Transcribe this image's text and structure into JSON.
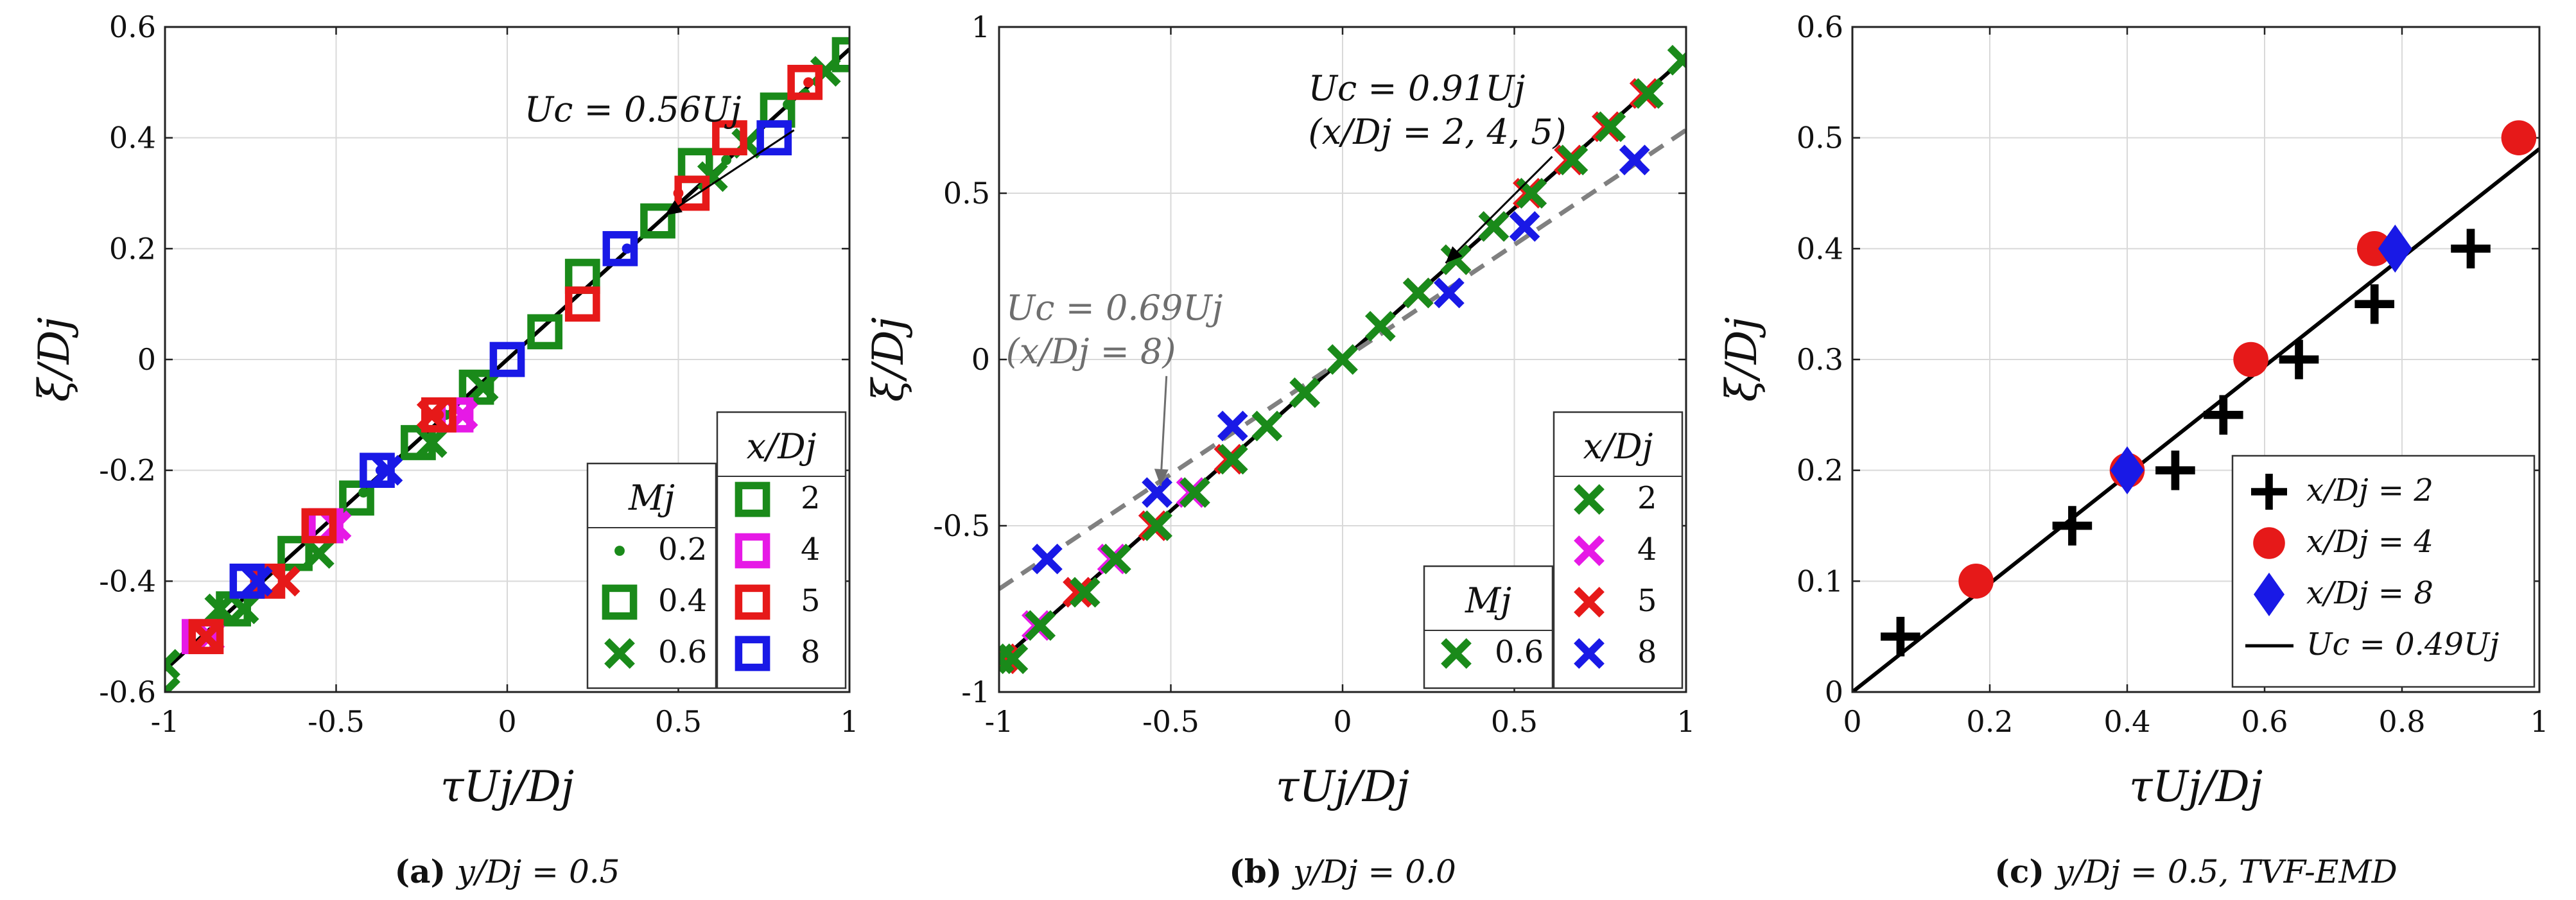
{
  "chart_data": [
    {
      "id": "a",
      "type": "scatter",
      "caption_label": "(a)",
      "caption_text": "y/Dj = 0.5",
      "xlabel": "τUj/Dj",
      "ylabel": "ξ/Dj",
      "xlim": [
        -1,
        1
      ],
      "ylim": [
        -0.6,
        0.6
      ],
      "xticks": [
        -1,
        -0.5,
        0,
        0.5,
        1
      ],
      "xtick_labels": [
        "-1",
        "-0.5",
        "0",
        "0.5",
        "1"
      ],
      "yticks": [
        -0.6,
        -0.4,
        -0.2,
        0,
        0.2,
        0.4,
        0.6
      ],
      "ytick_labels": [
        "-0.6",
        "-0.4",
        "-0.2",
        "0",
        "0.2",
        "0.4",
        "0.6"
      ],
      "grid": true,
      "fit_lines": [
        {
          "name": "Uc = 0.56Uj",
          "slope": 0.56,
          "style": "solid",
          "color": "#000000"
        }
      ],
      "annotations": [
        {
          "text": "Uc = 0.56Uj",
          "x": 0.05,
          "y": 0.43,
          "arrow_to": [
            0.46,
            0.26
          ],
          "color": "#000000"
        }
      ],
      "legend_mach": {
        "title": "Mj",
        "entries": [
          {
            "label": "0.2",
            "marker": "dot"
          },
          {
            "label": "0.4",
            "marker": "square"
          },
          {
            "label": "0.6",
            "marker": "x"
          }
        ]
      },
      "legend_xd": {
        "title": "x/Dj",
        "entries": [
          {
            "label": "2",
            "color": "#1a8a1a",
            "marker": "square"
          },
          {
            "label": "4",
            "color": "#e619e6",
            "marker": "square"
          },
          {
            "label": "5",
            "color": "#e61919",
            "marker": "square"
          },
          {
            "label": "8",
            "color": "#1919e6",
            "marker": "square"
          }
        ]
      },
      "series": [
        {
          "name": "x/Dj=2, Mj=0.2",
          "marker": "dot",
          "color": "#1a8a1a",
          "points": [
            [
              -0.84,
              -0.47
            ],
            [
              -0.42,
              -0.24
            ],
            [
              0.64,
              0.36
            ],
            [
              0.82,
              0.46
            ],
            [
              0.87,
              0.48
            ],
            [
              -0.18,
              -0.1
            ]
          ]
        },
        {
          "name": "x/Dj=2, Mj=0.4",
          "marker": "square",
          "color": "#1a8a1a",
          "points": [
            [
              1.0,
              0.55
            ],
            [
              0.79,
              0.45
            ],
            [
              0.55,
              0.35
            ],
            [
              0.44,
              0.25
            ],
            [
              0.22,
              0.15
            ],
            [
              0.11,
              0.05
            ],
            [
              -0.09,
              -0.05
            ],
            [
              -0.26,
              -0.15
            ],
            [
              -0.44,
              -0.25
            ],
            [
              -0.62,
              -0.35
            ],
            [
              -0.8,
              -0.45
            ]
          ]
        },
        {
          "name": "x/Dj=2, Mj=0.6",
          "marker": "x",
          "color": "#1a8a1a",
          "points": [
            [
              -1.0,
              -0.6
            ],
            [
              -1.0,
              -0.55
            ],
            [
              -0.84,
              -0.45
            ],
            [
              -0.77,
              -0.45
            ],
            [
              -0.55,
              -0.35
            ],
            [
              -0.22,
              -0.15
            ],
            [
              -0.07,
              -0.05
            ],
            [
              0.6,
              0.33
            ],
            [
              0.7,
              0.39
            ],
            [
              0.93,
              0.52
            ]
          ]
        },
        {
          "name": "x/Dj=4, Mj=0.4",
          "marker": "square",
          "color": "#e619e6",
          "points": [
            [
              -0.9,
              -0.5
            ],
            [
              -0.53,
              -0.3
            ],
            [
              -0.15,
              -0.1
            ]
          ]
        },
        {
          "name": "x/Dj=4, Mj=0.6",
          "marker": "x",
          "color": "#e619e6",
          "points": [
            [
              -0.5,
              -0.3
            ],
            [
              -0.13,
              -0.1
            ],
            [
              -0.87,
              -0.5
            ]
          ]
        },
        {
          "name": "x/Dj=5, Mj=0.2",
          "marker": "dot",
          "color": "#e61919",
          "points": [
            [
              0.5,
              0.3
            ],
            [
              0.88,
              0.5
            ],
            [
              -0.2,
              -0.1
            ]
          ]
        },
        {
          "name": "x/Dj=5, Mj=0.4",
          "marker": "square",
          "color": "#e61919",
          "points": [
            [
              0.87,
              0.5
            ],
            [
              0.65,
              0.4
            ],
            [
              0.54,
              0.3
            ],
            [
              0.22,
              0.1
            ],
            [
              -0.2,
              -0.1
            ],
            [
              -0.55,
              -0.3
            ],
            [
              -0.7,
              -0.4
            ],
            [
              -0.88,
              -0.5
            ]
          ]
        },
        {
          "name": "x/Dj=5, Mj=0.6",
          "marker": "x",
          "color": "#e61919",
          "points": [
            [
              -0.65,
              -0.4
            ],
            [
              -0.88,
              -0.5
            ],
            [
              -0.22,
              -0.1
            ]
          ]
        },
        {
          "name": "x/Dj=8, Mj=0.2",
          "marker": "dot",
          "color": "#1919e6",
          "points": [
            [
              0.35,
              0.2
            ],
            [
              -0.37,
              -0.2
            ]
          ]
        },
        {
          "name": "x/Dj=8, Mj=0.4",
          "marker": "square",
          "color": "#1919e6",
          "points": [
            [
              0.78,
              0.4
            ],
            [
              0.33,
              0.2
            ],
            [
              0.0,
              0.0
            ],
            [
              -0.38,
              -0.2
            ],
            [
              -0.76,
              -0.4
            ]
          ]
        },
        {
          "name": "x/Dj=8, Mj=0.6",
          "marker": "x",
          "color": "#1919e6",
          "points": [
            [
              -0.35,
              -0.2
            ],
            [
              -0.73,
              -0.4
            ]
          ]
        }
      ]
    },
    {
      "id": "b",
      "type": "scatter",
      "caption_label": "(b)",
      "caption_text": "y/Dj = 0.0",
      "xlabel": "τUj/Dj",
      "ylabel": "ξ/Dj",
      "xlim": [
        -1,
        1
      ],
      "ylim": [
        -1,
        1
      ],
      "xticks": [
        -1,
        -0.5,
        0,
        0.5,
        1
      ],
      "xtick_labels": [
        "-1",
        "-0.5",
        "0",
        "0.5",
        "1"
      ],
      "yticks": [
        -1,
        -0.5,
        0,
        0.5,
        1
      ],
      "ytick_labels": [
        "-1",
        "-0.5",
        "0",
        "0.5",
        "1"
      ],
      "grid": true,
      "fit_lines": [
        {
          "name": "Uc = 0.91Uj",
          "slope": 0.91,
          "style": "solid",
          "color": "#000000"
        },
        {
          "name": "Uc = 0.69Uj",
          "slope": 0.69,
          "style": "dashed",
          "color": "#808080"
        }
      ],
      "annotations": [
        {
          "text": "Uc = 0.91Uj",
          "text2": "(x/Dj = 2, 4, 5)",
          "x": -0.1,
          "y": 0.78,
          "arrow_to": [
            0.3,
            0.29
          ],
          "color": "#000000"
        },
        {
          "text": "Uc = 0.69Uj",
          "text2": "(x/Dj = 8)",
          "x": -0.98,
          "y": 0.12,
          "arrow_to": [
            -0.53,
            -0.38
          ],
          "color": "#6e6e6e"
        }
      ],
      "legend_mach": {
        "title": "Mj",
        "entries": [
          {
            "label": "0.6",
            "marker": "x"
          }
        ]
      },
      "legend_xd": {
        "title": "x/Dj",
        "entries": [
          {
            "label": "2",
            "color": "#1a8a1a",
            "marker": "x"
          },
          {
            "label": "4",
            "color": "#e619e6",
            "marker": "x"
          },
          {
            "label": "5",
            "color": "#e61919",
            "marker": "x"
          },
          {
            "label": "8",
            "color": "#1919e6",
            "marker": "x"
          }
        ]
      },
      "series": [
        {
          "name": "x/Dj=4",
          "marker": "x",
          "color": "#e619e6",
          "points": [
            [
              -0.89,
              -0.8
            ],
            [
              -0.77,
              -0.7
            ],
            [
              -0.67,
              -0.6
            ],
            [
              -0.55,
              -0.5
            ],
            [
              -0.44,
              -0.4
            ],
            [
              -0.33,
              -0.3
            ],
            [
              0.44,
              0.4
            ],
            [
              0.55,
              0.5
            ],
            [
              0.66,
              0.6
            ],
            [
              0.77,
              0.7
            ],
            [
              0.88,
              0.8
            ]
          ]
        },
        {
          "name": "x/Dj=5",
          "marker": "x",
          "color": "#e61919",
          "points": [
            [
              -0.99,
              -0.9
            ],
            [
              -0.77,
              -0.7
            ],
            [
              -0.55,
              -0.5
            ],
            [
              -0.33,
              -0.3
            ],
            [
              0.22,
              0.2
            ],
            [
              0.33,
              0.3
            ],
            [
              0.54,
              0.5
            ],
            [
              0.66,
              0.6
            ],
            [
              0.77,
              0.7
            ],
            [
              0.88,
              0.8
            ]
          ]
        },
        {
          "name": "x/Dj=2",
          "marker": "x",
          "color": "#1a8a1a",
          "points": [
            [
              -1.0,
              -0.9
            ],
            [
              -0.96,
              -0.9
            ],
            [
              -0.88,
              -0.8
            ],
            [
              -0.75,
              -0.7
            ],
            [
              -0.66,
              -0.6
            ],
            [
              -0.54,
              -0.5
            ],
            [
              -0.43,
              -0.4
            ],
            [
              -0.32,
              -0.3
            ],
            [
              -0.22,
              -0.2
            ],
            [
              -0.11,
              -0.1
            ],
            [
              0.0,
              0.0
            ],
            [
              0.11,
              0.1
            ],
            [
              0.22,
              0.2
            ],
            [
              0.33,
              0.3
            ],
            [
              0.44,
              0.4
            ],
            [
              0.55,
              0.5
            ],
            [
              0.67,
              0.6
            ],
            [
              0.78,
              0.7
            ],
            [
              0.89,
              0.8
            ],
            [
              0.99,
              0.9
            ]
          ]
        },
        {
          "name": "x/Dj=8",
          "marker": "x",
          "color": "#1919e6",
          "points": [
            [
              -0.86,
              -0.6
            ],
            [
              -0.54,
              -0.4
            ],
            [
              -0.32,
              -0.2
            ],
            [
              0.31,
              0.2
            ],
            [
              0.53,
              0.4
            ],
            [
              0.85,
              0.6
            ]
          ]
        }
      ]
    },
    {
      "id": "c",
      "type": "scatter",
      "caption_label": "(c)",
      "caption_text": "y/Dj = 0.5, TVF-EMD",
      "xlabel": "τUj/Dj",
      "ylabel": "ξ/Dj",
      "xlim": [
        0,
        1
      ],
      "ylim": [
        0,
        0.6
      ],
      "xticks": [
        0,
        0.2,
        0.4,
        0.6,
        0.8,
        1
      ],
      "xtick_labels": [
        "0",
        "0.2",
        "0.4",
        "0.6",
        "0.8",
        "1"
      ],
      "yticks": [
        0,
        0.1,
        0.2,
        0.3,
        0.4,
        0.5,
        0.6
      ],
      "ytick_labels": [
        "0",
        "0.1",
        "0.2",
        "0.3",
        "0.4",
        "0.5",
        "0.6"
      ],
      "grid": true,
      "fit_lines": [
        {
          "name": "Uc = 0.49Uj",
          "slope": 0.49,
          "style": "solid",
          "color": "#000000"
        }
      ],
      "annotations": [],
      "legend_entries": [
        {
          "label": "x/Dj = 2",
          "marker": "plus",
          "color": "#000000"
        },
        {
          "label": "x/Dj = 4",
          "marker": "circle",
          "color": "#e61919"
        },
        {
          "label": "x/Dj = 8",
          "marker": "diamond",
          "color": "#1919e6"
        },
        {
          "label": "Uc = 0.49Uj",
          "marker": "line",
          "color": "#000000"
        }
      ],
      "series": [
        {
          "name": "x/Dj = 2",
          "marker": "plus",
          "color": "#000000",
          "points": [
            [
              0.07,
              0.05
            ],
            [
              0.32,
              0.15
            ],
            [
              0.47,
              0.2
            ],
            [
              0.54,
              0.25
            ],
            [
              0.65,
              0.3
            ],
            [
              0.76,
              0.35
            ],
            [
              0.9,
              0.4
            ]
          ]
        },
        {
          "name": "x/Dj = 4",
          "marker": "circle",
          "color": "#e61919",
          "points": [
            [
              0.18,
              0.1
            ],
            [
              0.4,
              0.2
            ],
            [
              0.58,
              0.3
            ],
            [
              0.76,
              0.4
            ],
            [
              0.97,
              0.5
            ]
          ]
        },
        {
          "name": "x/Dj = 8",
          "marker": "diamond",
          "color": "#1919e6",
          "points": [
            [
              0.4,
              0.2
            ],
            [
              0.79,
              0.4
            ]
          ]
        }
      ]
    }
  ]
}
